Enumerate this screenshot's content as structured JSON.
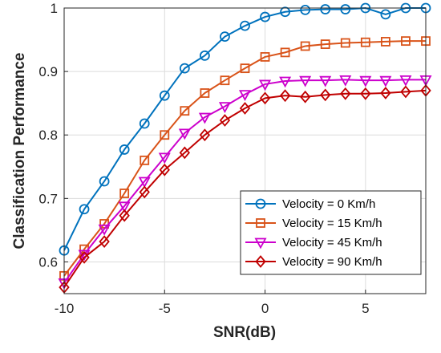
{
  "chart_data": {
    "type": "line",
    "xlabel": "SNR(dB)",
    "ylabel": "Classification Performance",
    "xlim": [
      -10,
      8
    ],
    "ylim": [
      0.55,
      1.0
    ],
    "xticks": [
      -10,
      -5,
      0,
      5
    ],
    "yticks": [
      0.6,
      0.7,
      0.8,
      0.9,
      1.0
    ],
    "xtick_labels": [
      "-10",
      "-5",
      "0",
      "5"
    ],
    "ytick_labels": [
      "0.6",
      "0.7",
      "0.8",
      "0.9",
      "1"
    ],
    "grid": true,
    "legend_position": "bottom-right",
    "x": [
      -10,
      -9,
      -8,
      -7,
      -6,
      -5,
      -4,
      -3,
      -2,
      -1,
      0,
      1,
      2,
      3,
      4,
      5,
      6,
      7,
      8
    ],
    "series": [
      {
        "name": "Velocity = 0 Km/h",
        "color": "#0072BD",
        "marker": "circle",
        "values": [
          0.618,
          0.683,
          0.727,
          0.777,
          0.818,
          0.862,
          0.905,
          0.925,
          0.955,
          0.972,
          0.986,
          0.994,
          0.997,
          0.998,
          0.998,
          1.0,
          0.99,
          1.0,
          1.0
        ]
      },
      {
        "name": "Velocity = 15 Km/h",
        "color": "#D95319",
        "marker": "square",
        "values": [
          0.578,
          0.62,
          0.66,
          0.708,
          0.76,
          0.8,
          0.838,
          0.866,
          0.886,
          0.905,
          0.923,
          0.93,
          0.94,
          0.943,
          0.945,
          0.946,
          0.947,
          0.948,
          0.948
        ]
      },
      {
        "name": "Velocity = 45 Km/h",
        "color": "#CC00CC",
        "marker": "triangle-down",
        "values": [
          0.567,
          0.612,
          0.652,
          0.688,
          0.727,
          0.765,
          0.803,
          0.828,
          0.845,
          0.864,
          0.88,
          0.885,
          0.886,
          0.886,
          0.887,
          0.886,
          0.886,
          0.887,
          0.887
        ]
      },
      {
        "name": "Velocity = 90 Km/h",
        "color": "#C00000",
        "marker": "diamond",
        "values": [
          0.56,
          0.607,
          0.632,
          0.673,
          0.71,
          0.745,
          0.772,
          0.8,
          0.823,
          0.842,
          0.858,
          0.862,
          0.86,
          0.863,
          0.865,
          0.865,
          0.866,
          0.868,
          0.87
        ]
      }
    ]
  }
}
